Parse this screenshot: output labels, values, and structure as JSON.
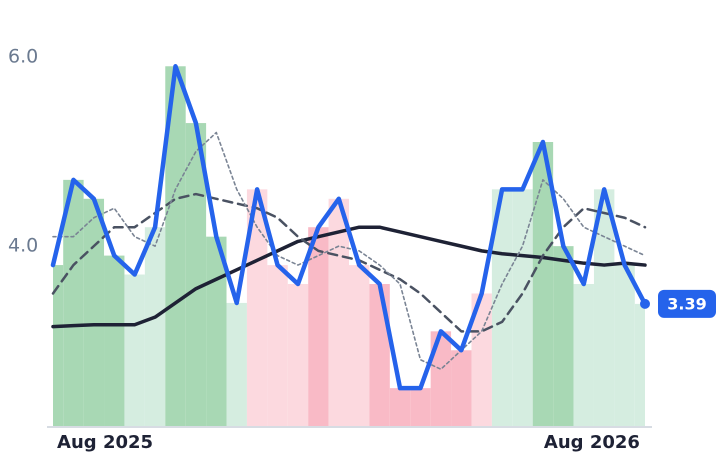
{
  "chart_data": {
    "type": "line",
    "ylim": [
      2.1,
      6.6
    ],
    "yticks": [
      {
        "value": 6,
        "label": "6.0"
      },
      {
        "value": 4,
        "label": "4.0"
      }
    ],
    "xlim": [
      0,
      29
    ],
    "xticks": [
      {
        "value": 2.55,
        "label": "Aug 2025"
      },
      {
        "value": 26.4,
        "label": "Aug 2026"
      }
    ],
    "series": [
      {
        "color": "#2563eb",
        "values": [
          3.8,
          4.7,
          4.5,
          3.9,
          3.7,
          4.2,
          5.9,
          5.3,
          4.1,
          3.4,
          4.6,
          3.8,
          3.6,
          4.2,
          4.5,
          3.8,
          3.6,
          2.5,
          2.5,
          3.1,
          2.9,
          3.5,
          4.6,
          4.6,
          5.1,
          4.0,
          3.6,
          4.6,
          3.8,
          3.39
        ]
      },
      {
        "color": "#7a8494",
        "values": [
          4.1,
          4.1,
          4.3,
          4.4,
          4.1,
          4.0,
          4.6,
          5.0,
          5.2,
          4.6,
          4.2,
          3.9,
          3.8,
          3.9,
          4.0,
          3.95,
          3.8,
          3.6,
          2.8,
          2.7,
          2.9,
          3.1,
          3.6,
          4.0,
          4.7,
          4.5,
          4.2,
          4.1,
          4.0,
          3.9
        ]
      },
      {
        "color": "#4a5262",
        "values": [
          3.5,
          3.8,
          4.0,
          4.2,
          4.2,
          4.35,
          4.5,
          4.55,
          4.5,
          4.45,
          4.4,
          4.3,
          4.1,
          3.95,
          3.9,
          3.85,
          3.75,
          3.65,
          3.5,
          3.3,
          3.1,
          3.1,
          3.2,
          3.5,
          3.9,
          4.2,
          4.4,
          4.35,
          4.3,
          4.2
        ]
      },
      {
        "color": "#1e2235",
        "values": [
          3.15,
          3.16,
          3.17,
          3.17,
          3.17,
          3.25,
          3.4,
          3.55,
          3.65,
          3.75,
          3.85,
          3.95,
          4.05,
          4.1,
          4.15,
          4.2,
          4.2,
          4.15,
          4.1,
          4.05,
          4.0,
          3.95,
          3.92,
          3.9,
          3.88,
          3.85,
          3.82,
          3.8,
          3.82,
          3.8
        ]
      }
    ],
    "fill_colors": [
      "#a8d8b4",
      "#a8d8b4",
      "#a8d8b4",
      "#a8d8b4",
      "#d5ede0",
      "#d5ede0",
      "#a8d8b4",
      "#a8d8b4",
      "#a8d8b4",
      "#d5ede0",
      "#fcd9df",
      "#fcd9df",
      "#fcd9df",
      "#f9bac6",
      "#fcd9df",
      "#fcd9df",
      "#f9bac6",
      "#f9bac6",
      "#f9bac6",
      "#f9bac6",
      "#f9bac6",
      "#fcd9df",
      "#d5ede0",
      "#d5ede0",
      "#a8d8b4",
      "#a8d8b4",
      "#d5ede0",
      "#d5ede0",
      "#d5ede0",
      "#d5ede0"
    ]
  }
}
